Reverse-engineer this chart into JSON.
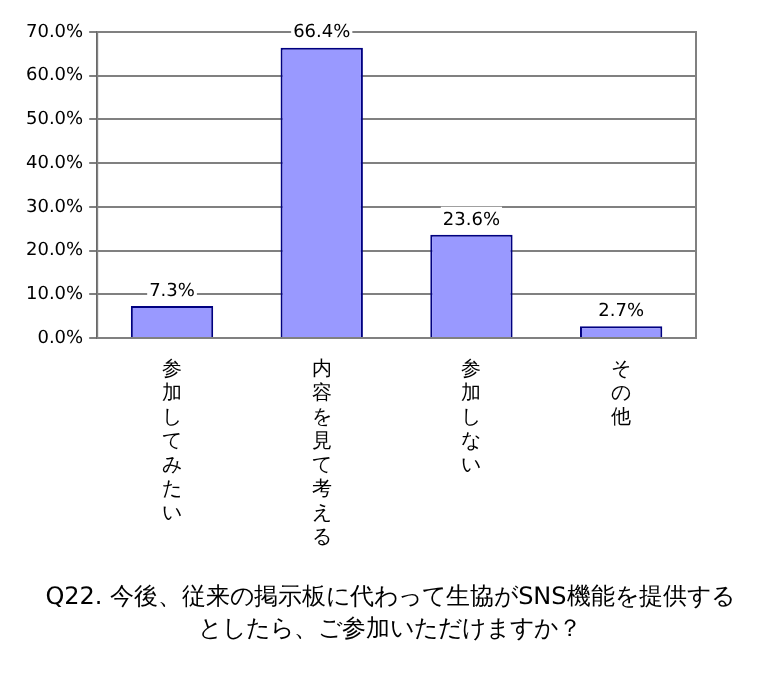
{
  "chart_data": {
    "type": "bar",
    "title": "Q22. 今後、従来の掲示板に代わって生協がSNS機能を提供するとしたら、ご参加いただけますか？",
    "categories": [
      "参加してみたい",
      "内容を見て考える",
      "参加しない",
      "その他"
    ],
    "values": [
      7.3,
      66.4,
      23.6,
      2.7
    ],
    "value_labels": [
      "7.3%",
      "66.4%",
      "23.6%",
      "2.7%"
    ],
    "color": "#9999ff",
    "ylim": [
      0,
      70
    ],
    "yticks": [
      {
        "value": 0,
        "label": "0.0%"
      },
      {
        "value": 10,
        "label": "10.0%"
      },
      {
        "value": 20,
        "label": "20.0%"
      },
      {
        "value": 30,
        "label": "30.0%"
      },
      {
        "value": 40,
        "label": "40.0%"
      },
      {
        "value": 50,
        "label": "50.0%"
      },
      {
        "value": 60,
        "label": "60.0%"
      },
      {
        "value": 70,
        "label": "70.0%"
      }
    ],
    "grid": "y",
    "legend": false
  }
}
